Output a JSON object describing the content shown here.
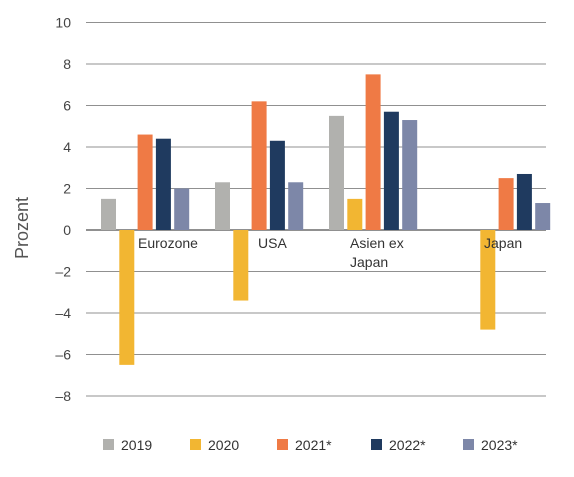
{
  "chart_data": {
    "type": "bar",
    "ylabel": "Prozent",
    "xlabel": "",
    "ylim": [
      -8,
      10
    ],
    "yticks": [
      10,
      8,
      6,
      4,
      2,
      0,
      -2,
      -4,
      -6,
      -8
    ],
    "ytick_labels": [
      "10",
      "8",
      "6",
      "4",
      "2",
      "0",
      "–2",
      "–4",
      "–6",
      "–8"
    ],
    "grid": true,
    "legend_position": "bottom",
    "categories": [
      {
        "name": "Eurozone",
        "lines": [
          "Eurozone"
        ]
      },
      {
        "name": "USA",
        "lines": [
          "USA"
        ]
      },
      {
        "name": "Asien ex Japan",
        "lines": [
          "Asien ex",
          "Japan"
        ]
      },
      {
        "name": "Japan",
        "lines": [
          "Japan"
        ]
      }
    ],
    "series": [
      {
        "name": "2019",
        "color": "#b1b1ae",
        "values": [
          1.5,
          2.3,
          5.5,
          null
        ]
      },
      {
        "name": "2020",
        "color": "#f2b632",
        "values": [
          -6.5,
          -3.4,
          1.5,
          -4.8
        ]
      },
      {
        "name": "2021*",
        "color": "#ef7a45",
        "values": [
          4.6,
          6.2,
          7.5,
          2.5
        ]
      },
      {
        "name": "2022*",
        "color": "#1f3a5f",
        "values": [
          4.4,
          4.3,
          5.7,
          2.7
        ]
      },
      {
        "name": "2023*",
        "color": "#7d87a8",
        "values": [
          2.0,
          2.3,
          5.3,
          1.3
        ]
      }
    ]
  }
}
